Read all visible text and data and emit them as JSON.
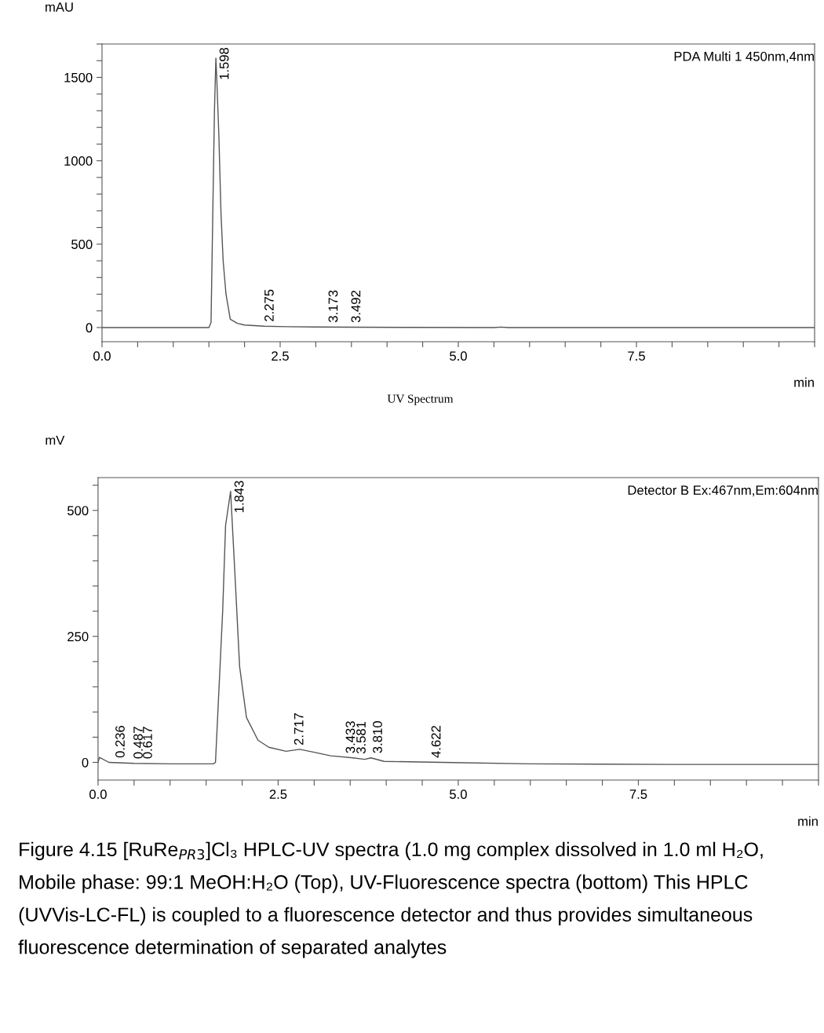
{
  "chart_data": [
    {
      "type": "line",
      "xlabel": "min",
      "ylabel": "mAU",
      "xlim": [
        0,
        10
      ],
      "ylim": [
        -85,
        1700
      ],
      "xticks": [
        {
          "value": 0,
          "label": "0.0"
        },
        {
          "value": 0.5,
          "label": null
        },
        {
          "value": 1,
          "label": null
        },
        {
          "value": 1.5,
          "label": null
        },
        {
          "value": 2,
          "label": null
        },
        {
          "value": 2.5,
          "label": "2.5"
        },
        {
          "value": 3,
          "label": null
        },
        {
          "value": 3.5,
          "label": null
        },
        {
          "value": 4,
          "label": null
        },
        {
          "value": 4.5,
          "label": null
        },
        {
          "value": 5,
          "label": "5.0"
        },
        {
          "value": 5.5,
          "label": null
        },
        {
          "value": 6,
          "label": null
        },
        {
          "value": 6.5,
          "label": null
        },
        {
          "value": 7,
          "label": null
        },
        {
          "value": 7.5,
          "label": "7.5"
        },
        {
          "value": 8,
          "label": null
        },
        {
          "value": 8.5,
          "label": null
        },
        {
          "value": 9,
          "label": null
        },
        {
          "value": 9.5,
          "label": null
        },
        {
          "value": 10,
          "label": null
        }
      ],
      "yticks": [
        0,
        {
          "value": 100,
          "label": null
        },
        {
          "value": 200,
          "label": null
        },
        {
          "value": 300,
          "label": null
        },
        {
          "value": 400,
          "label": null
        },
        500,
        {
          "value": 600,
          "label": null
        },
        {
          "value": 700,
          "label": null
        },
        {
          "value": 800,
          "label": null
        },
        {
          "value": 900,
          "label": null
        },
        1000,
        {
          "value": 1100,
          "label": null
        },
        {
          "value": 1200,
          "label": null
        },
        {
          "value": 1300,
          "label": null
        },
        {
          "value": 1400,
          "label": null
        },
        1500,
        {
          "value": 1600,
          "label": null
        },
        {
          "value": 1700,
          "label": null
        }
      ],
      "series": [
        {
          "color": "#555555",
          "x": [
            0,
            1.5,
            1.53,
            1.56,
            1.578,
            1.598,
            1.61,
            1.64,
            1.67,
            1.7,
            1.74,
            1.8,
            1.9,
            2.0,
            2.275,
            2.6,
            3.0,
            3.5,
            4.2,
            5.5,
            5.6,
            5.7,
            6.0,
            10.0
          ],
          "values": [
            0,
            0,
            30,
            830,
            1300,
            1615,
            1500,
            1150,
            680,
            400,
            200,
            50,
            25,
            15,
            8,
            5,
            3,
            2,
            1,
            0,
            3,
            0,
            0,
            0
          ]
        }
      ],
      "annotations": [
        "PDA Multi 1 450nm,4nm",
        "UV Spectrum",
        {
          "text": "1.598",
          "x": 1.598,
          "y": 1615
        },
        {
          "text": "2.275",
          "x": 2.275,
          "y": 8
        },
        {
          "text": "3.173",
          "x": 3.173,
          "y": 3
        },
        {
          "text": "3.492",
          "x": 3.492,
          "y": 2
        }
      ]
    },
    {
      "type": "line",
      "xlabel": "min",
      "ylabel": "mV",
      "xlim": [
        0,
        10
      ],
      "ylim": [
        -35,
        565
      ],
      "xticks": [
        {
          "value": 0,
          "label": "0.0"
        },
        {
          "value": 0.5,
          "label": null
        },
        {
          "value": 1,
          "label": null
        },
        {
          "value": 1.5,
          "label": null
        },
        {
          "value": 2,
          "label": null
        },
        {
          "value": 2.5,
          "label": "2.5"
        },
        {
          "value": 3,
          "label": null
        },
        {
          "value": 3.5,
          "label": null
        },
        {
          "value": 4,
          "label": null
        },
        {
          "value": 4.5,
          "label": null
        },
        {
          "value": 5,
          "label": "5.0"
        },
        {
          "value": 5.5,
          "label": null
        },
        {
          "value": 6,
          "label": null
        },
        {
          "value": 6.5,
          "label": null
        },
        {
          "value": 7,
          "label": null
        },
        {
          "value": 7.5,
          "label": "7.5"
        },
        {
          "value": 8,
          "label": null
        },
        {
          "value": 8.5,
          "label": null
        },
        {
          "value": 9,
          "label": null
        },
        {
          "value": 9.5,
          "label": null
        },
        {
          "value": 10,
          "label": null
        }
      ],
      "yticks": [
        0,
        {
          "value": 50,
          "label": null
        },
        {
          "value": 100,
          "label": null
        },
        {
          "value": 150,
          "label": null
        },
        {
          "value": 200,
          "label": null
        },
        250,
        {
          "value": 300,
          "label": null
        },
        {
          "value": 350,
          "label": null
        },
        {
          "value": 400,
          "label": null
        },
        {
          "value": 450,
          "label": null
        },
        500,
        {
          "value": 550,
          "label": null
        }
      ],
      "series": [
        {
          "color": "#555555",
          "x": [
            0,
            0.02,
            0.15,
            0.5,
            1.0,
            1.6,
            1.63,
            1.73,
            1.77,
            1.84,
            1.906,
            1.965,
            2.06,
            2.22,
            2.37,
            2.61,
            2.8,
            3.0,
            3.23,
            3.54,
            3.7,
            3.79,
            3.97,
            4.78,
            6.0,
            8.0,
            10.0
          ],
          "values": [
            0,
            10,
            0,
            -2,
            -3,
            -3,
            0,
            301,
            470,
            538,
            357,
            190,
            89,
            44,
            30,
            22,
            26,
            20,
            13,
            9,
            6,
            9,
            2,
            0,
            -3,
            -4,
            -4
          ]
        }
      ],
      "annotations": [
        "Detector B Ex:467nm,Em:604nm",
        "Figure 4.15 [RuRe$_{PR3}$]Cl₃ HPLC-UV spectra (1.0 mg complex dissolved in 1.0 ml H₂O, Mobile phase: 99:1 MeOH:H₂O (Top), UV-Fluorescence spectra (bottom) This HPLC (UVVis-LC-FL) is coupled to a fluorescence detector and thus provides simultaneous fluorescence determination of separated analytes",
        {
          "text": "0.236",
          "x": 0.236,
          "y": 0
        },
        {
          "text": "0.487",
          "x": 0.487,
          "y": -2
        },
        {
          "text": "0.617",
          "x": 0.617,
          "y": -2
        },
        {
          "text": "1.843",
          "x": 1.843,
          "y": 538
        },
        {
          "text": "2.717",
          "x": 2.717,
          "y": 25
        },
        {
          "text": "3.433",
          "x": 3.433,
          "y": 9
        },
        {
          "text": "3.581",
          "x": 3.581,
          "y": 8
        },
        {
          "text": "3.810",
          "x": 3.81,
          "y": 9
        },
        {
          "text": "4.622",
          "x": 4.622,
          "y": 0
        }
      ]
    }
  ]
}
